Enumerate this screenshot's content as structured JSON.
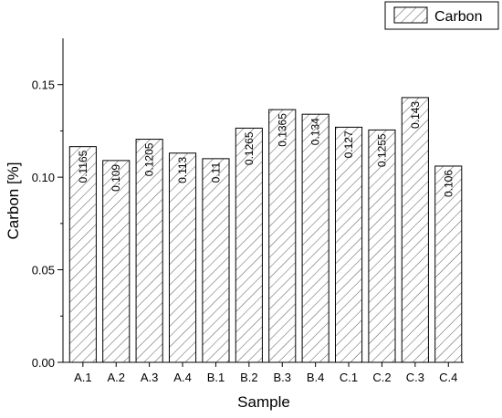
{
  "chart_data": {
    "type": "bar",
    "categories": [
      "A.1",
      "A.2",
      "A.3",
      "A.4",
      "B.1",
      "B.2",
      "B.3",
      "B.4",
      "C.1",
      "C.2",
      "C.3",
      "C.4"
    ],
    "series": [
      {
        "name": "Carbon",
        "values": [
          0.1165,
          0.109,
          0.1205,
          0.113,
          0.11,
          0.1265,
          0.1365,
          0.134,
          0.127,
          0.1255,
          0.143,
          0.106
        ],
        "data_labels": [
          "0.1165",
          "0.109",
          "0.1205",
          "0.113",
          "0.11",
          "0.1265",
          "0.1365",
          "0.134",
          "0.127",
          "0.1255",
          "0.143",
          "0.106"
        ]
      }
    ],
    "xlabel": "Sample",
    "ylabel": "Carbon [%]",
    "ylim": [
      0,
      0.175
    ],
    "yticks": [
      "0.00",
      "0.05",
      "0.10",
      "0.15"
    ],
    "legend_position": "top-right",
    "grid": false,
    "bar_fill": "hatched",
    "color": "#000000"
  }
}
